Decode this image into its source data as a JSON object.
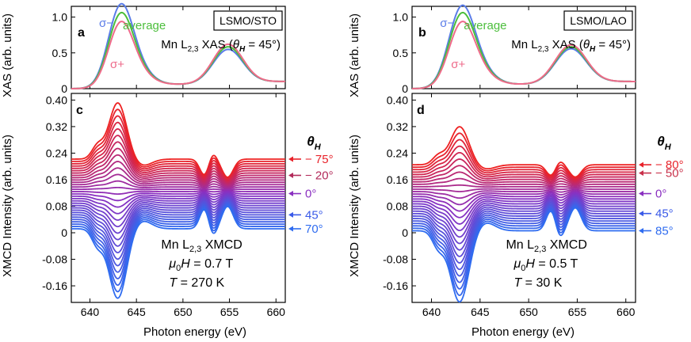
{
  "figure": {
    "xlabel": "Photon energy (eV)",
    "ylabel_xas": "XAS (arb. units)",
    "ylabel_xmcd": "XMCD Intensity (arb. units)",
    "theta_symbol": "θ",
    "theta_sub": "H",
    "legend": {
      "minus": "σ−",
      "average": "average",
      "plus": "σ+"
    },
    "colors": {
      "minus": "#5a7ce8",
      "average": "#4cbe3c",
      "plus": "#ee6a8a",
      "red": "#ee2222",
      "blue": "#2f6cf0"
    }
  },
  "chart_data": [
    {
      "id": "a",
      "type": "line",
      "panel_label": "a",
      "sample": "LSMO/STO",
      "title_prefix": "Mn L",
      "title_sub": "2,3",
      "title_mid": " XAS (",
      "title_theta": "θ",
      "title_theta_sub": "H",
      "title_suffix": " = 45°)",
      "xlim": [
        638,
        661
      ],
      "ylim": [
        0,
        1.15
      ],
      "xticks": [
        640,
        645,
        650,
        655,
        660
      ],
      "yticks": [
        0,
        0.5,
        1.0
      ],
      "ytick_labels": [
        "0",
        "0.5",
        "1.0"
      ],
      "peak_energy": 643.2,
      "l2_energy": 654.8,
      "series": [
        {
          "name": "σ−",
          "color": "#5a7ce8",
          "l3_peak": 1.12,
          "l2_peak": 0.52
        },
        {
          "name": "average",
          "color": "#4cbe3c",
          "l3_peak": 1.0,
          "l2_peak": 0.56
        },
        {
          "name": "σ+",
          "color": "#ee6a8a",
          "l3_peak": 0.88,
          "l2_peak": 0.6
        }
      ]
    },
    {
      "id": "b",
      "type": "line",
      "panel_label": "b",
      "sample": "LSMO/LAO",
      "title_prefix": "Mn L",
      "title_sub": "2,3",
      "title_mid": " XAS (",
      "title_theta": "θ",
      "title_theta_sub": "H",
      "title_suffix": " = 45°)",
      "xlim": [
        638,
        661
      ],
      "ylim": [
        0,
        1.15
      ],
      "xticks": [
        640,
        645,
        650,
        655,
        660
      ],
      "yticks": [
        0,
        0.5,
        1.0
      ],
      "ytick_labels": [
        "0",
        "0.5",
        "1.0"
      ],
      "peak_energy": 643.0,
      "l2_energy": 654.3,
      "series": [
        {
          "name": "σ−",
          "color": "#5a7ce8",
          "l3_peak": 1.1,
          "l2_peak": 0.53
        },
        {
          "name": "average",
          "color": "#4cbe3c",
          "l3_peak": 1.0,
          "l2_peak": 0.56
        },
        {
          "name": "σ+",
          "color": "#ee6a8a",
          "l3_peak": 0.88,
          "l2_peak": 0.59
        }
      ]
    },
    {
      "id": "c",
      "type": "line",
      "panel_label": "c",
      "annot_line1_prefix": "Mn L",
      "annot_line1_sub": "2,3",
      "annot_line1_suffix": " XMCD",
      "annot_line2": "μ0H = 0.7 T",
      "annot_line2_mu": "μ",
      "annot_line2_sub": "0",
      "annot_line2_h": "H",
      "annot_line2_val": " = 0.7 T",
      "annot_line3_t": "T",
      "annot_line3_val": " = 270 K",
      "xlim": [
        638,
        661
      ],
      "ylim": [
        -0.21,
        0.42
      ],
      "xticks": [
        640,
        645,
        650,
        655,
        660
      ],
      "yticks": [
        -0.16,
        -0.08,
        0,
        0.08,
        0.16,
        0.24,
        0.32,
        0.4
      ],
      "ytick_labels": [
        "-0.16",
        "-0.08",
        "0",
        "0.08",
        "0.16",
        "0.24",
        "0.32",
        "0.40"
      ],
      "n_curves": 31,
      "offset_top": 0.222,
      "offset_bottom": 0.012,
      "amp_top": 0.17,
      "amp_bottom": -0.21,
      "peak_energy": 643.0,
      "theta_labels": [
        "− 75°",
        "− 20°",
        "0°",
        "45°",
        "70°"
      ],
      "theta_label_values": [
        0.222,
        0.173,
        0.118,
        0.054,
        0.012
      ],
      "theta_label_colors": [
        "#e8222a",
        "#b22a5a",
        "#8a2fc0",
        "#3a5ae8",
        "#2f6cf0"
      ]
    },
    {
      "id": "d",
      "type": "line",
      "panel_label": "d",
      "annot_line1_prefix": "Mn L",
      "annot_line1_sub": "2,3",
      "annot_line1_suffix": " XMCD",
      "annot_line2": "μ0H = 0.5 T",
      "annot_line2_mu": "μ",
      "annot_line2_sub": "0",
      "annot_line2_h": "H",
      "annot_line2_val": " = 0.5 T",
      "annot_line3_t": "T",
      "annot_line3_val": " = 30 K",
      "xlim": [
        638,
        661
      ],
      "ylim": [
        -0.21,
        0.42
      ],
      "xticks": [
        640,
        645,
        650,
        655,
        660
      ],
      "yticks": [
        -0.16,
        -0.08,
        0,
        0.08,
        0.16,
        0.24,
        0.32,
        0.4
      ],
      "ytick_labels": [
        "-0.16",
        "-0.08",
        "0",
        "0.08",
        "0.16",
        "0.24",
        "0.32",
        "0.40"
      ],
      "n_curves": 28,
      "offset_top": 0.205,
      "offset_bottom": 0.006,
      "amp_top": 0.115,
      "amp_bottom": -0.215,
      "peak_energy": 642.9,
      "theta_labels": [
        "− 80°",
        "− 50°",
        "0°",
        "45°",
        "85°"
      ],
      "theta_label_values": [
        0.205,
        0.18,
        0.118,
        0.058,
        0.006
      ],
      "theta_label_colors": [
        "#e8222a",
        "#c8304a",
        "#8a2fc0",
        "#3a5ae8",
        "#2f6cf0"
      ]
    }
  ]
}
